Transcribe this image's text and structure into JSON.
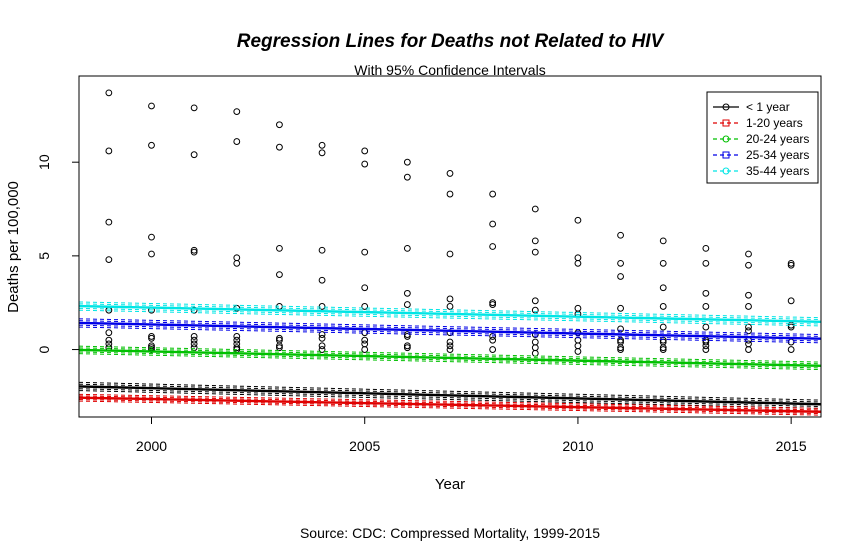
{
  "chart_data": {
    "type": "scatter",
    "title": "Regression Lines for Deaths not Related to HIV",
    "subtitle": "With 95% Confidence Intervals",
    "xlabel": "Year",
    "ylabel": "Deaths per 100,000",
    "caption": "Source: CDC: Compressed Mortality, 1999-2015",
    "xlim": [
      1998.3,
      2015.7
    ],
    "ylim": [
      -3.6,
      14.6
    ],
    "x_ticks": [
      2000,
      2005,
      2010,
      2015
    ],
    "y_ticks": [
      0,
      5,
      10
    ],
    "legend_position": "top-right",
    "points": [
      {
        "x": 1999,
        "ys": [
          13.7,
          10.6,
          6.8,
          4.8,
          2.1,
          0.9,
          0.5,
          0.3,
          0.1
        ]
      },
      {
        "x": 2000,
        "ys": [
          13.0,
          10.9,
          6.0,
          5.1,
          2.1,
          0.7,
          0.6,
          0.2,
          0.1,
          0.0
        ]
      },
      {
        "x": 2001,
        "ys": [
          12.9,
          10.4,
          5.3,
          5.2,
          2.1,
          0.7,
          0.5,
          0.3,
          0.1
        ]
      },
      {
        "x": 2002,
        "ys": [
          12.7,
          11.1,
          4.9,
          4.6,
          2.2,
          0.7,
          0.5,
          0.3,
          0.1,
          0.0
        ]
      },
      {
        "x": 2003,
        "ys": [
          12.0,
          10.8,
          5.4,
          4.0,
          2.3,
          0.6,
          0.5,
          0.2,
          0.1
        ]
      },
      {
        "x": 2004,
        "ys": [
          10.9,
          10.5,
          5.3,
          3.7,
          2.3,
          0.8,
          0.6,
          0.2,
          0.0
        ]
      },
      {
        "x": 2005,
        "ys": [
          10.6,
          9.9,
          5.2,
          3.3,
          2.3,
          0.9,
          0.5,
          0.3,
          0.0
        ]
      },
      {
        "x": 2006,
        "ys": [
          10.0,
          9.2,
          5.4,
          3.0,
          2.4,
          0.8,
          0.7,
          0.2,
          0.1
        ]
      },
      {
        "x": 2007,
        "ys": [
          9.4,
          8.3,
          5.1,
          2.7,
          2.3,
          0.9,
          0.4,
          0.2,
          0.0
        ]
      },
      {
        "x": 2008,
        "ys": [
          8.3,
          6.7,
          5.5,
          2.5,
          2.4,
          0.7,
          0.5,
          0.0
        ]
      },
      {
        "x": 2009,
        "ys": [
          7.5,
          5.8,
          5.2,
          2.6,
          2.1,
          0.8,
          0.4,
          0.1,
          -0.2
        ]
      },
      {
        "x": 2010,
        "ys": [
          6.9,
          4.9,
          4.6,
          2.2,
          1.9,
          0.9,
          0.5,
          0.2,
          -0.1
        ]
      },
      {
        "x": 2011,
        "ys": [
          6.1,
          4.6,
          3.9,
          2.2,
          1.1,
          0.5,
          0.4,
          0.1,
          0.0
        ]
      },
      {
        "x": 2012,
        "ys": [
          5.8,
          4.6,
          3.3,
          2.3,
          1.2,
          0.5,
          0.4,
          0.1,
          0.0
        ]
      },
      {
        "x": 2013,
        "ys": [
          5.4,
          4.6,
          3.0,
          2.3,
          1.2,
          0.5,
          0.4,
          0.2,
          0.0
        ]
      },
      {
        "x": 2014,
        "ys": [
          5.1,
          4.5,
          2.9,
          2.3,
          1.2,
          1.0,
          0.5,
          0.3,
          0.0
        ]
      },
      {
        "x": 2015,
        "ys": [
          4.6,
          4.5,
          2.6,
          1.3,
          1.2,
          0.4,
          0.0
        ]
      }
    ],
    "series": [
      {
        "name": "< 1 year",
        "color": "#000000",
        "fit": [
          -1.97,
          -2.92
        ],
        "ci": 0.22,
        "line_style": "solid",
        "point_shape": "circle"
      },
      {
        "name": "1-20 years",
        "color": "#df0000",
        "fit": [
          -2.57,
          -3.32
        ],
        "ci": 0.18,
        "line_style": "dashed",
        "point_shape": "square"
      },
      {
        "name": "20-24 years",
        "color": "#00c000",
        "fit": [
          -0.02,
          -0.87
        ],
        "ci": 0.2,
        "line_style": "dashed",
        "point_shape": "circle"
      },
      {
        "name": "25-34 years",
        "color": "#0000e6",
        "fit": [
          1.42,
          0.58
        ],
        "ci": 0.22,
        "line_style": "dashed",
        "point_shape": "square"
      },
      {
        "name": "35-44 years",
        "color": "#00e5e5",
        "fit": [
          2.32,
          1.48
        ],
        "ci": 0.22,
        "line_style": "dashed",
        "point_shape": "circle"
      }
    ]
  }
}
